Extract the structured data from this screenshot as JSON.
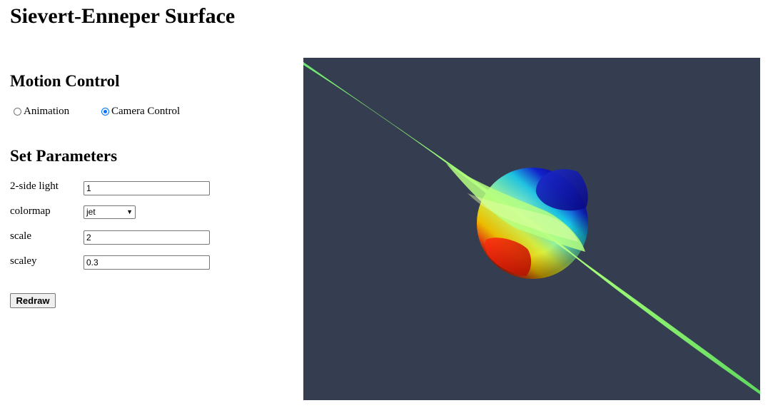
{
  "page_title": "Sievert-Enneper Surface",
  "motion_control": {
    "heading": "Motion Control",
    "options": [
      {
        "label": "Animation",
        "checked": false
      },
      {
        "label": "Camera Control",
        "checked": true
      }
    ]
  },
  "parameters": {
    "heading": "Set Parameters",
    "fields": {
      "two_side_light": {
        "label": "2-side light",
        "value": "1"
      },
      "colormap": {
        "label": "colormap",
        "value": "jet"
      },
      "scale": {
        "label": "scale",
        "value": "2"
      },
      "scaley": {
        "label": "scaley",
        "value": "0.3"
      }
    }
  },
  "redraw_button": "Redraw",
  "viewport": {
    "background_color": "#353e50",
    "colormap": [
      "#00007f",
      "#0000ff",
      "#00ffff",
      "#7fff7f",
      "#ffff00",
      "#ff0000",
      "#7f0000"
    ]
  }
}
